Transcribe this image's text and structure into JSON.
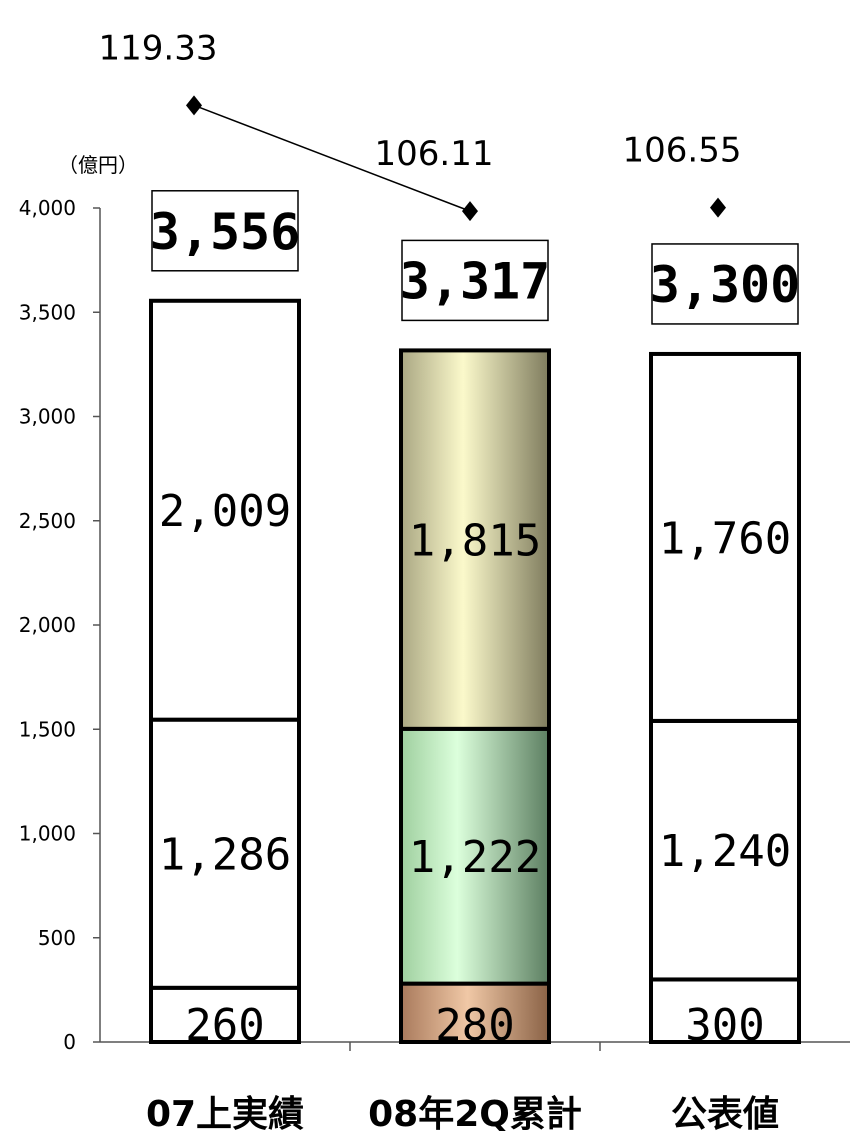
{
  "chart_data": {
    "type": "bar",
    "stacked": true,
    "unit_label": "（億円）",
    "categories": [
      "07上実績",
      "08年2Q累計",
      "公表値"
    ],
    "ylim": [
      0,
      4000
    ],
    "yticks": [
      0,
      500,
      1000,
      1500,
      2000,
      2500,
      3000,
      3500,
      4000
    ],
    "ytick_labels": [
      "0",
      "500",
      "1,000",
      "1,500",
      "2,000",
      "2,500",
      "3,000",
      "3,500",
      "4,000"
    ],
    "grid": false,
    "legend": "none",
    "series": [
      {
        "values": [
          260,
          280,
          300
        ],
        "labels": [
          "260",
          "280",
          "300"
        ]
      },
      {
        "values": [
          1286,
          1222,
          1240
        ],
        "labels": [
          "1,286",
          "1,222",
          "1,240"
        ]
      },
      {
        "values": [
          2009,
          1815,
          1760
        ],
        "labels": [
          "2,009",
          "1,815",
          "1,760"
        ]
      }
    ],
    "totals": [
      3556,
      3317,
      3300
    ],
    "total_labels": [
      "3,556",
      "3,317",
      "3,300"
    ],
    "marker_series": {
      "values": [
        119.33,
        106.11,
        106.55
      ],
      "labels": [
        "119.33",
        "106.11",
        "106.55"
      ],
      "connected": [
        true,
        true,
        false
      ]
    }
  },
  "colors": {
    "outline": "#000000",
    "plain_fill": "#ffffff",
    "bottom_segment_highlight": "#a97a5c",
    "middle_segment_highlight": "#9fcf9f",
    "top_segment_highlight": "#cfcc9a"
  }
}
